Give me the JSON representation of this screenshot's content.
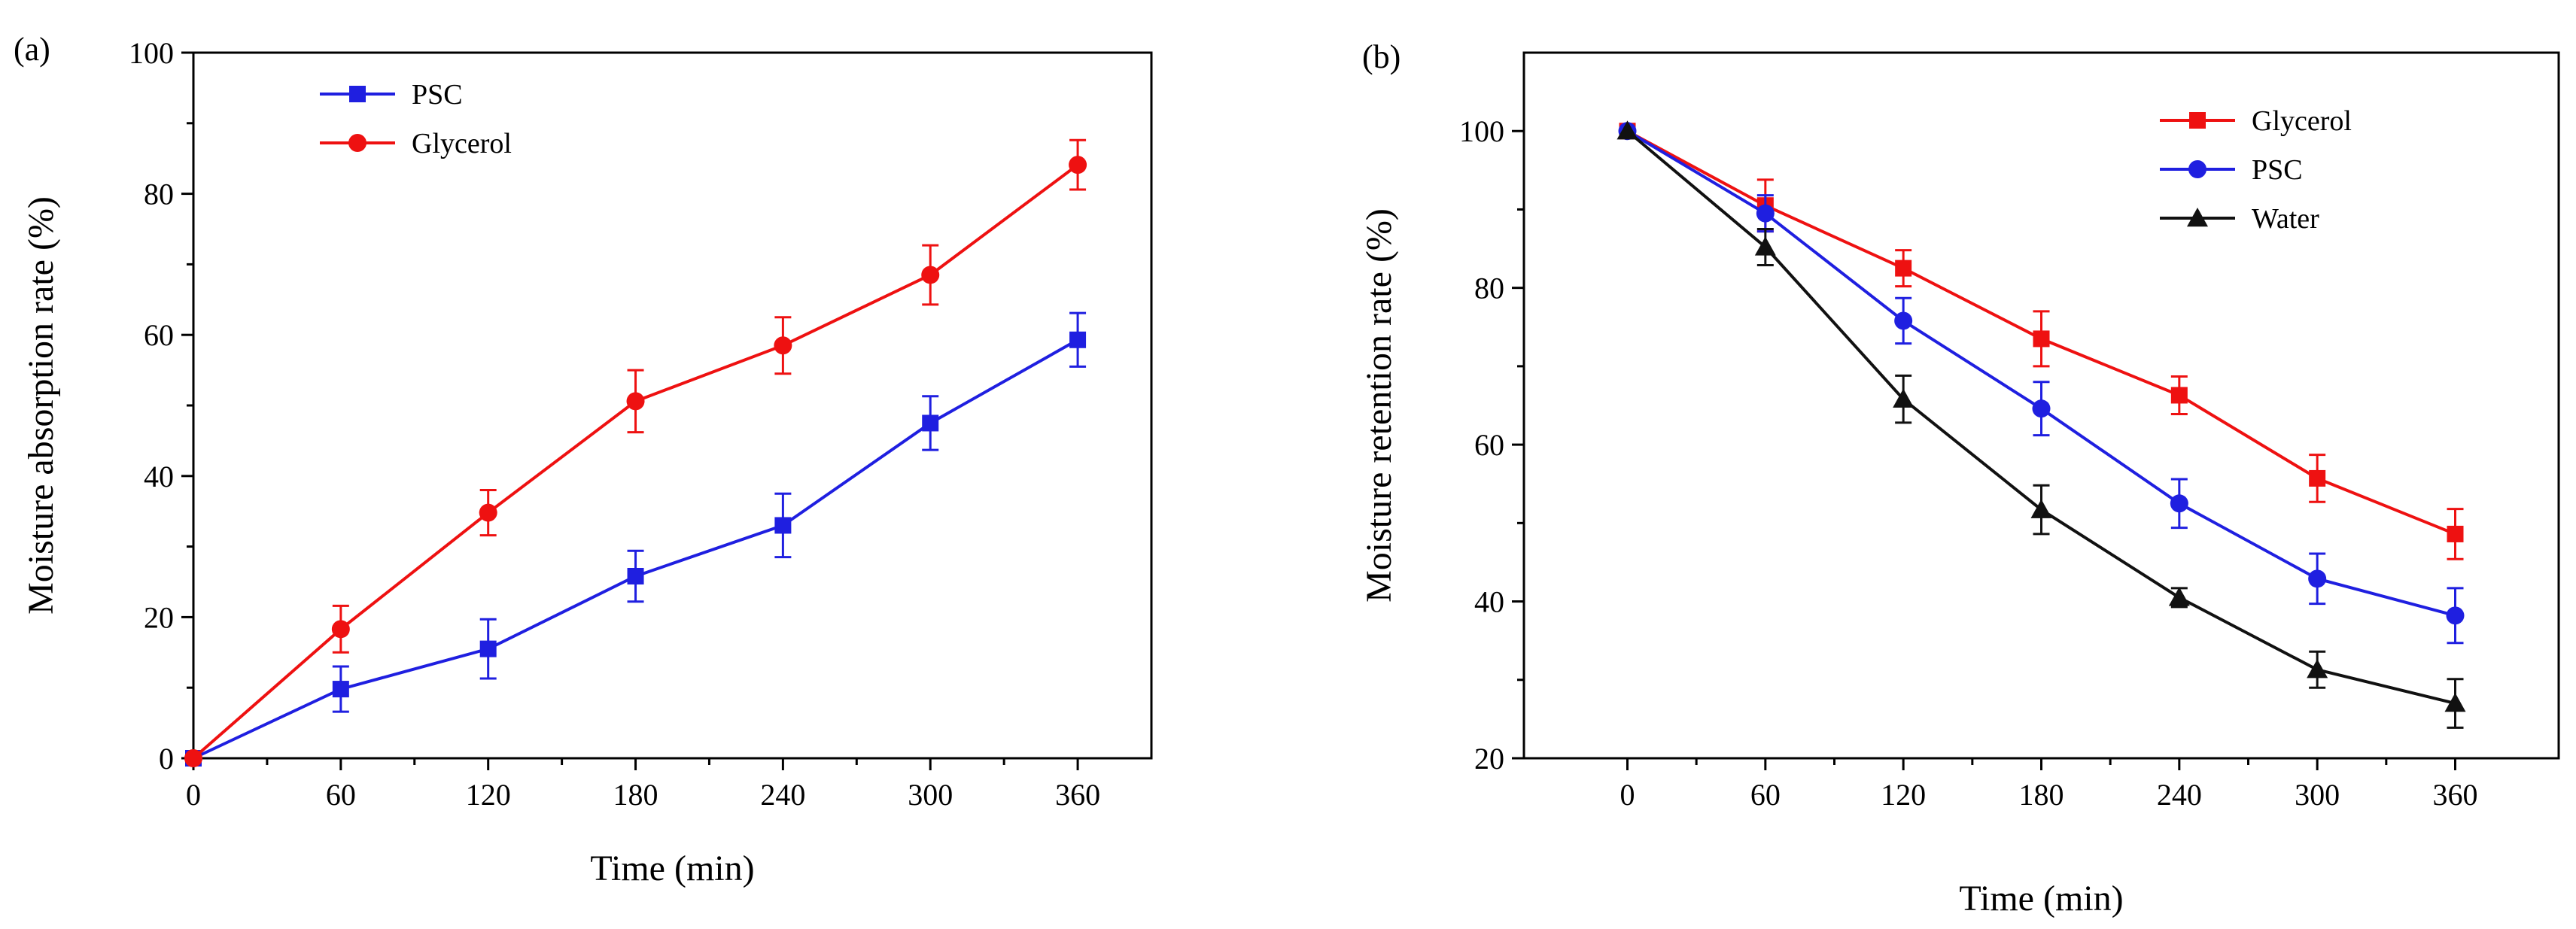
{
  "chart_data": [
    {
      "type": "line",
      "panel_label": "(a)",
      "xlabel": "Time (min)",
      "ylabel": "Moisture absorption rate (%)",
      "x": [
        0,
        60,
        120,
        180,
        240,
        300,
        360
      ],
      "xticks": [
        "0",
        "60",
        "120",
        "180",
        "240",
        "300",
        "360"
      ],
      "xlim": [
        0,
        390
      ],
      "yticks": [
        "0",
        "20",
        "40",
        "60",
        "80",
        "100"
      ],
      "ylim": [
        0,
        100
      ],
      "legend_position": "top-left",
      "series": [
        {
          "name": "PSC",
          "color": "#1f1fe0",
          "marker": "square",
          "values": [
            0,
            9.8,
            15.5,
            25.8,
            33.0,
            47.5,
            59.3
          ],
          "errors": [
            0,
            3.2,
            4.2,
            3.6,
            4.5,
            3.8,
            3.8
          ]
        },
        {
          "name": "Glycerol",
          "color": "#ee1111",
          "marker": "circle",
          "values": [
            0,
            18.3,
            34.8,
            50.6,
            58.5,
            68.5,
            84.1
          ],
          "errors": [
            0,
            3.3,
            3.2,
            4.4,
            4.0,
            4.2,
            3.5
          ]
        }
      ]
    },
    {
      "type": "line",
      "panel_label": "(b)",
      "xlabel": "Time (min)",
      "ylabel": "Moisture retention rate (%)",
      "x": [
        0,
        60,
        120,
        180,
        240,
        300,
        360
      ],
      "xticks": [
        "0",
        "60",
        "120",
        "180",
        "240",
        "300",
        "360"
      ],
      "xlim": [
        -45,
        405
      ],
      "yticks": [
        "20",
        "40",
        "60",
        "80",
        "100"
      ],
      "ylim": [
        20,
        110
      ],
      "legend_position": "top-right",
      "series": [
        {
          "name": "Glycerol",
          "color": "#ee1111",
          "marker": "square",
          "values": [
            100,
            90.5,
            82.5,
            73.5,
            66.3,
            55.7,
            48.6
          ],
          "errors": [
            0,
            3.3,
            2.3,
            3.5,
            2.4,
            3.0,
            3.2
          ]
        },
        {
          "name": "PSC",
          "color": "#1f1fe0",
          "marker": "circle",
          "values": [
            100,
            89.5,
            75.8,
            64.6,
            52.5,
            42.9,
            38.2
          ],
          "errors": [
            0,
            2.3,
            2.9,
            3.4,
            3.1,
            3.2,
            3.5
          ]
        },
        {
          "name": "Water",
          "color": "#111111",
          "marker": "triangle",
          "values": [
            100,
            85.2,
            65.8,
            51.7,
            40.5,
            31.3,
            27.0
          ],
          "errors": [
            0,
            2.3,
            3.0,
            3.1,
            1.2,
            2.3,
            3.1
          ]
        }
      ]
    }
  ]
}
